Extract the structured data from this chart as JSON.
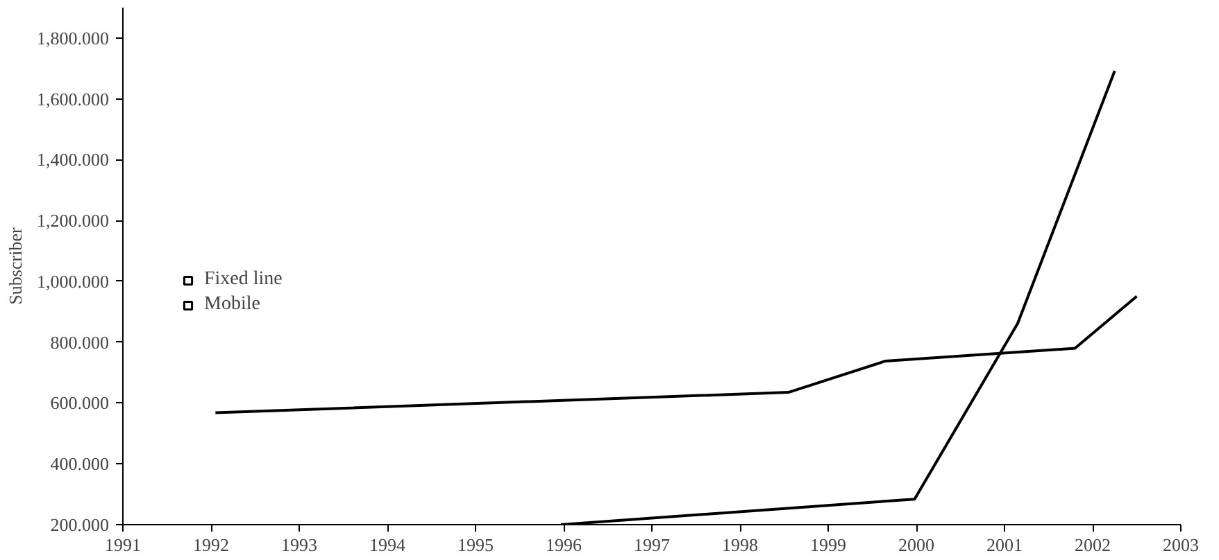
{
  "chart_data": {
    "type": "line",
    "ylabel": "Subscriber",
    "series": [
      {
        "name": "Fixed line",
        "color": "#000000",
        "x": [
          1992.05,
          1998.55,
          1999.65,
          2001.8,
          2002.5
        ],
        "values": [
          568,
          635,
          738,
          780,
          951
        ]
      },
      {
        "name": "Mobile",
        "color": "#000000",
        "x": [
          1995.97,
          1999.98,
          2001.15,
          2002.25
        ],
        "values": [
          200,
          284,
          862,
          1692
        ]
      }
    ],
    "xlim": [
      1991,
      2003
    ],
    "xticks": [
      1991,
      1992,
      1993,
      1994,
      1995,
      1996,
      1997,
      1998,
      1999,
      2000,
      2001,
      2002,
      2003
    ],
    "ylim": [
      200,
      1900
    ],
    "yticks": [
      {
        "value": 200,
        "label": "200.000"
      },
      {
        "value": 400,
        "label": "400.000"
      },
      {
        "value": 600,
        "label": "600.000"
      },
      {
        "value": 800,
        "label": "800.000"
      },
      {
        "value": 1000,
        "label": "1,000.000"
      },
      {
        "value": 1200,
        "label": "1,200.000"
      },
      {
        "value": 1400,
        "label": "1,400.000"
      },
      {
        "value": 1600,
        "label": "1,600.000"
      },
      {
        "value": 1800,
        "label": "1,800.000"
      }
    ],
    "grid": false,
    "legend": "left",
    "marker": "none",
    "line_style": "solid"
  }
}
